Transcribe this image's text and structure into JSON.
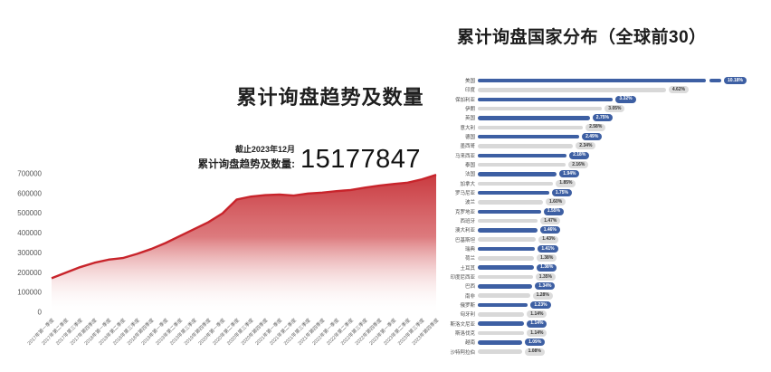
{
  "left_chart": {
    "title": "累计询盘趋势及数量",
    "stat": {
      "caption": "截止2023年12月",
      "label": "累计询盘趋势及数量:",
      "value": "15177847"
    }
  },
  "right_chart": {
    "title": "累计询盘国家分布（全球前30）"
  },
  "chart_data": [
    {
      "type": "area",
      "title": "累计询盘趋势及数量",
      "annotation": {
        "caption": "截止2023年12月",
        "label": "累计询盘趋势及数量:",
        "value": 15177847
      },
      "x": [
        "2017年第一季度",
        "2017年第二季度",
        "2017年第三季度",
        "2017年第四季度",
        "2018年第一季度",
        "2018年第二季度",
        "2018年第三季度",
        "2018年第四季度",
        "2019年第一季度",
        "2019年第二季度",
        "2019年第三季度",
        "2019年第四季度",
        "2020年第一季度",
        "2020年第二季度",
        "2020年第三季度",
        "2020年第四季度",
        "2021年第一季度",
        "2021年第二季度",
        "2021年第三季度",
        "2021年第四季度",
        "2022年第一季度",
        "2022年第二季度",
        "2022年第三季度",
        "2022年第四季度",
        "2023年第一季度",
        "2023年第二季度",
        "2023年第三季度",
        "2023年第四季度"
      ],
      "values": [
        172000,
        200000,
        228000,
        250000,
        266000,
        274000,
        295000,
        320000,
        350000,
        385000,
        420000,
        455000,
        500000,
        570000,
        585000,
        592000,
        595000,
        590000,
        600000,
        605000,
        612000,
        618000,
        630000,
        640000,
        648000,
        655000,
        672000,
        695000
      ],
      "ylim": [
        0,
        700000
      ],
      "yticks": [
        0,
        100000,
        200000,
        300000,
        400000,
        500000,
        600000,
        700000
      ],
      "grid": false,
      "legend": "none",
      "line_color": "#c8242b",
      "fill_top_color": "#c93a40",
      "fill_bottom_color": "#ffffff"
    },
    {
      "type": "bar",
      "orientation": "horizontal",
      "title": "累计询盘国家分布（全球前30）",
      "categories": [
        "美国",
        "印度",
        "保加利亚",
        "伊朗",
        "英国",
        "意大利",
        "德国",
        "墨西哥",
        "马来西亚",
        "泰国",
        "法国",
        "加拿大",
        "罗马尼亚",
        "波兰",
        "克罗地亚",
        "西班牙",
        "澳大利亚",
        "巴基斯坦",
        "瑞典",
        "荷兰",
        "土耳其",
        "印度尼西亚",
        "巴西",
        "南非",
        "俄罗斯",
        "匈牙利",
        "斯洛文尼亚",
        "斯洛伐克",
        "越南",
        "沙特阿拉伯"
      ],
      "values": [
        10.18,
        4.62,
        3.32,
        3.05,
        2.75,
        2.58,
        2.49,
        2.34,
        2.18,
        2.16,
        1.94,
        1.85,
        1.75,
        1.6,
        1.55,
        1.47,
        1.46,
        1.43,
        1.41,
        1.38,
        1.38,
        1.35,
        1.34,
        1.28,
        1.23,
        1.14,
        1.14,
        1.14,
        1.09,
        1.08
      ],
      "value_labels": [
        "10.18%",
        "4.62%",
        "3.32%",
        "3.05%",
        "2.75%",
        "2.58%",
        "2.49%",
        "2.34%",
        "2.18%",
        "2.16%",
        "1.94%",
        "1.85%",
        "1.75%",
        "1.60%",
        "1.55%",
        "1.47%",
        "1.46%",
        "1.43%",
        "1.41%",
        "1.38%",
        "1.38%",
        "1.35%",
        "1.34%",
        "1.28%",
        "1.23%",
        "1.14%",
        "1.14%",
        "1.14%",
        "1.09%",
        "1.08%"
      ],
      "axis_break_category": "美国",
      "bar_color_odd": "#3d5fa3",
      "bar_color_even": "#d8d8d8",
      "legend": "none"
    }
  ]
}
